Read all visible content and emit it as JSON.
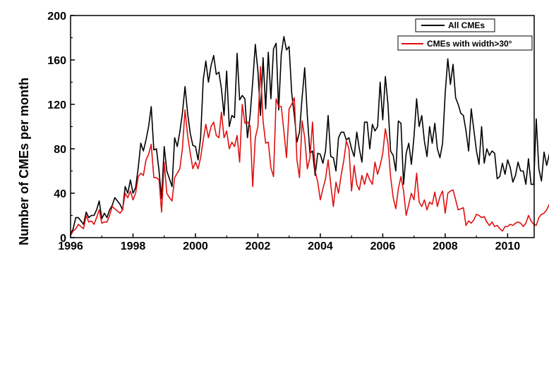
{
  "chart_data": {
    "type": "line",
    "title": "",
    "xlabel": "",
    "ylabel": "Number of CMEs per month",
    "xlim": [
      1996,
      2010.85
    ],
    "ylim": [
      0,
      200
    ],
    "x_ticks": [
      1996,
      1998,
      2000,
      2002,
      2004,
      2006,
      2008,
      2010
    ],
    "y_ticks": [
      0,
      40,
      80,
      120,
      160,
      200
    ],
    "grid": false,
    "legend_position": "top-right",
    "x_start": 1996.0,
    "x_step": 0.0833333,
    "series": [
      {
        "name": "All CMEs",
        "color": "#000000",
        "values": [
          3,
          8,
          18,
          18,
          15,
          12,
          23,
          18,
          20,
          20,
          25,
          33,
          17,
          22,
          18,
          25,
          29,
          36,
          33,
          30,
          25,
          46,
          40,
          52,
          40,
          45,
          63,
          85,
          78,
          88,
          100,
          118,
          79,
          80,
          60,
          35,
          82,
          60,
          53,
          46,
          90,
          82,
          95,
          112,
          136,
          112,
          94,
          83,
          82,
          70,
          90,
          142,
          159,
          140,
          155,
          164,
          147,
          149,
          134,
          110,
          150,
          100,
          110,
          108,
          166,
          124,
          128,
          125,
          90,
          110,
          140,
          174,
          150,
          110,
          162,
          116,
          167,
          125,
          170,
          175,
          115,
          165,
          181,
          169,
          172,
          130,
          110,
          86,
          95,
          126,
          153,
          110,
          76,
          78,
          56,
          76,
          75,
          67,
          78,
          110,
          73,
          72,
          60,
          90,
          95,
          95,
          88,
          90,
          80,
          73,
          95,
          80,
          68,
          104,
          104,
          80,
          102,
          96,
          100,
          140,
          106,
          145,
          120,
          78,
          74,
          60,
          105,
          103,
          48,
          76,
          85,
          66,
          91,
          125,
          100,
          110,
          87,
          73,
          100,
          85,
          103,
          80,
          72,
          85,
          130,
          161,
          138,
          156,
          126,
          120,
          112,
          110,
          96,
          78,
          116,
          97,
          78,
          66,
          100,
          67,
          80,
          74,
          78,
          76,
          53,
          55,
          67,
          57,
          70,
          63,
          50,
          56,
          68,
          60,
          60,
          48,
          71,
          48,
          48,
          107,
          62,
          51,
          77,
          65,
          75,
          92,
          85,
          100,
          101,
          93,
          83,
          77,
          78
        ]
      },
      {
        "name": "CMEs with width>30°",
        "color": "#e01010",
        "values": [
          2,
          6,
          8,
          12,
          10,
          8,
          20,
          14,
          15,
          12,
          18,
          25,
          13,
          14,
          14,
          20,
          28,
          26,
          24,
          22,
          25,
          40,
          36,
          42,
          34,
          40,
          55,
          58,
          56,
          70,
          75,
          84,
          54,
          54,
          52,
          23,
          68,
          40,
          36,
          33,
          54,
          58,
          62,
          80,
          115,
          92,
          76,
          62,
          68,
          62,
          72,
          88,
          102,
          90,
          100,
          104,
          92,
          90,
          113,
          90,
          96,
          80,
          86,
          82,
          92,
          68,
          120,
          103,
          104,
          101,
          46,
          90,
          100,
          154,
          105,
          85,
          86,
          63,
          55,
          125,
          118,
          118,
          96,
          72,
          116,
          120,
          126,
          70,
          54,
          105,
          90,
          62,
          72,
          104,
          60,
          50,
          34,
          44,
          53,
          70,
          48,
          28,
          50,
          40,
          56,
          69,
          87,
          80,
          42,
          65,
          48,
          43,
          56,
          48,
          58,
          52,
          48,
          68,
          57,
          65,
          76,
          98,
          85,
          55,
          36,
          26,
          44,
          55,
          42,
          20,
          30,
          40,
          34,
          58,
          32,
          28,
          34,
          25,
          32,
          30,
          41,
          28,
          37,
          42,
          22,
          40,
          42,
          43,
          34,
          25,
          26,
          27,
          11,
          15,
          13,
          16,
          21,
          20,
          18,
          19,
          14,
          11,
          14,
          10,
          11,
          8,
          6,
          10,
          10,
          12,
          11,
          13,
          14,
          13,
          10,
          13,
          20,
          15,
          12,
          11,
          18,
          21,
          22,
          25,
          30,
          37,
          40,
          38,
          35,
          42,
          50,
          45,
          38,
          36,
          35
        ]
      }
    ]
  }
}
